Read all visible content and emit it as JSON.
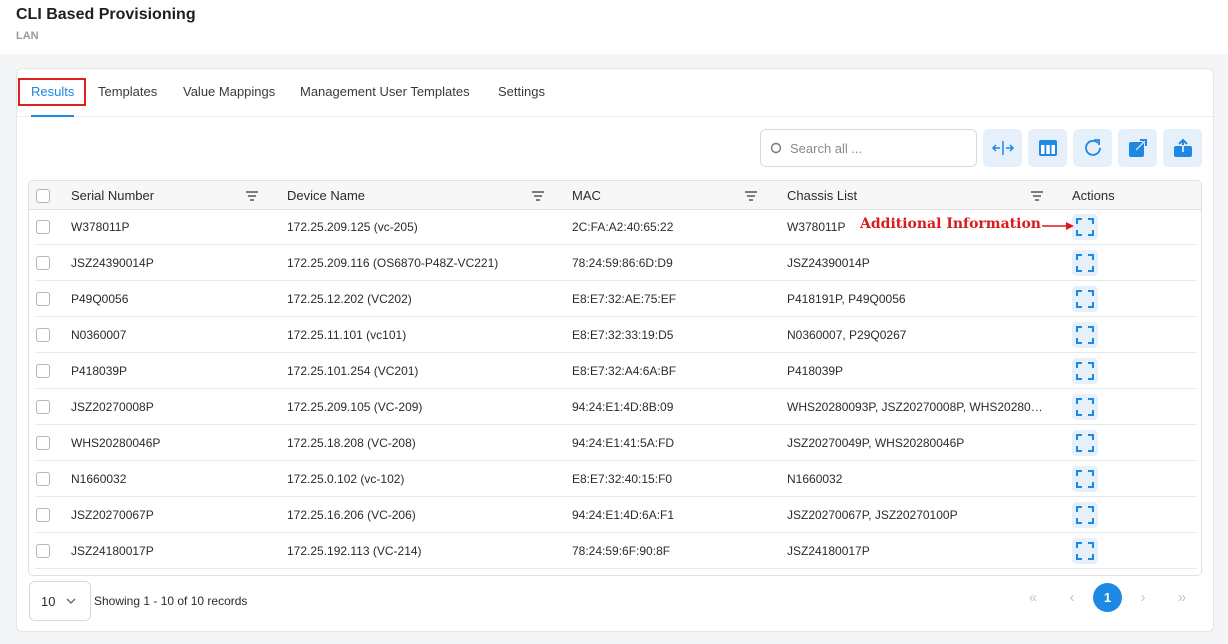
{
  "header": {
    "title": "CLI Based Provisioning",
    "subtitle": "LAN"
  },
  "tabs": [
    "Results",
    "Templates",
    "Value Mappings",
    "Management User Templates",
    "Settings"
  ],
  "search_placeholder": "Search all ...",
  "table": {
    "columns": [
      "Serial Number",
      "Device Name",
      "MAC",
      "Chassis List",
      "Actions"
    ],
    "rows": [
      [
        "W378011P",
        "172.25.209.125 (vc-205)",
        "2C:FA:A2:40:65:22",
        "W378011P"
      ],
      [
        "JSZ24390014P",
        "172.25.209.116 (OS6870-P48Z-VC221)",
        "78:24:59:86:6D:D9",
        "JSZ24390014P"
      ],
      [
        "P49Q0056",
        "172.25.12.202 (VC202)",
        "E8:E7:32:AE:75:EF",
        "P418191P, P49Q0056"
      ],
      [
        "N0360007",
        "172.25.11.101 (vc101)",
        "E8:E7:32:33:19:D5",
        "N0360007, P29Q0267"
      ],
      [
        "P418039P",
        "172.25.101.254 (VC201)",
        "E8:E7:32:A4:6A:BF",
        "P418039P"
      ],
      [
        "JSZ20270008P",
        "172.25.209.105 (VC-209)",
        "94:24:E1:4D:8B:09",
        "WHS20280093P, JSZ20270008P, WHS20280…"
      ],
      [
        "WHS20280046P",
        "172.25.18.208 (VC-208)",
        "94:24:E1:41:5A:FD",
        "JSZ20270049P, WHS20280046P"
      ],
      [
        "N1660032",
        "172.25.0.102 (vc-102)",
        "E8:E7:32:40:15:F0",
        "N1660032"
      ],
      [
        "JSZ20270067P",
        "172.25.16.206 (VC-206)",
        "94:24:E1:4D:6A:F1",
        "JSZ20270067P, JSZ20270100P"
      ],
      [
        "JSZ24180017P",
        "172.25.192.113 (VC-214)",
        "78:24:59:6F:90:8F",
        "JSZ24180017P"
      ]
    ]
  },
  "annotation": "Additional Information",
  "pagination": {
    "page_size": "10",
    "summary": "Showing 1 - 10 of 10 records",
    "current_page": "1"
  }
}
